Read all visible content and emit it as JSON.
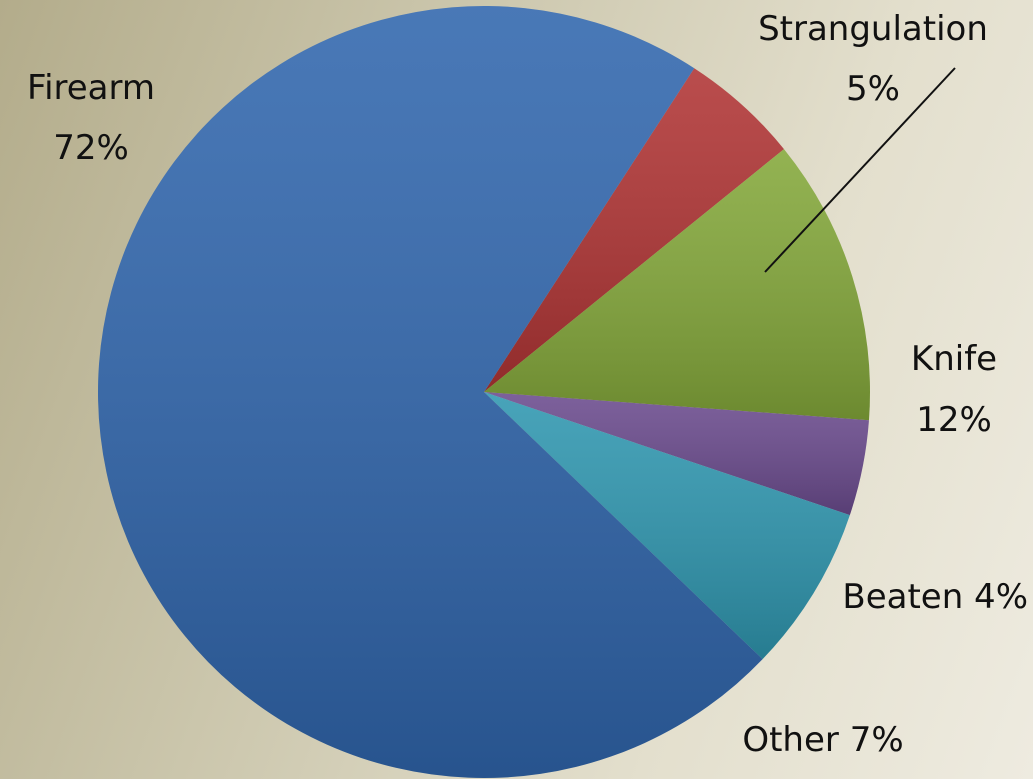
{
  "chart_data": {
    "type": "pie",
    "title": "",
    "slices": [
      {
        "label": "Strangulation",
        "value": 5,
        "value_label": "5%",
        "color": "#b03434"
      },
      {
        "label": "Knife",
        "value": 12,
        "value_label": "12%",
        "color": "#84a83a"
      },
      {
        "label": "Beaten",
        "value": 4,
        "value_label": "4%",
        "color": "#6b4b8e"
      },
      {
        "label": "Other",
        "value": 7,
        "value_label": "7%",
        "color": "#2f97b0"
      },
      {
        "label": "Firearm",
        "value": 72,
        "value_label": "72%",
        "color": "#3066ad"
      }
    ],
    "legend": "none",
    "data_labels": "outside",
    "start_angle_deg": 57
  },
  "colors": {
    "background_left": "#b3ac8b",
    "background_right": "#eeebe0",
    "label_text": "#111111",
    "leader_line": "#111111"
  }
}
